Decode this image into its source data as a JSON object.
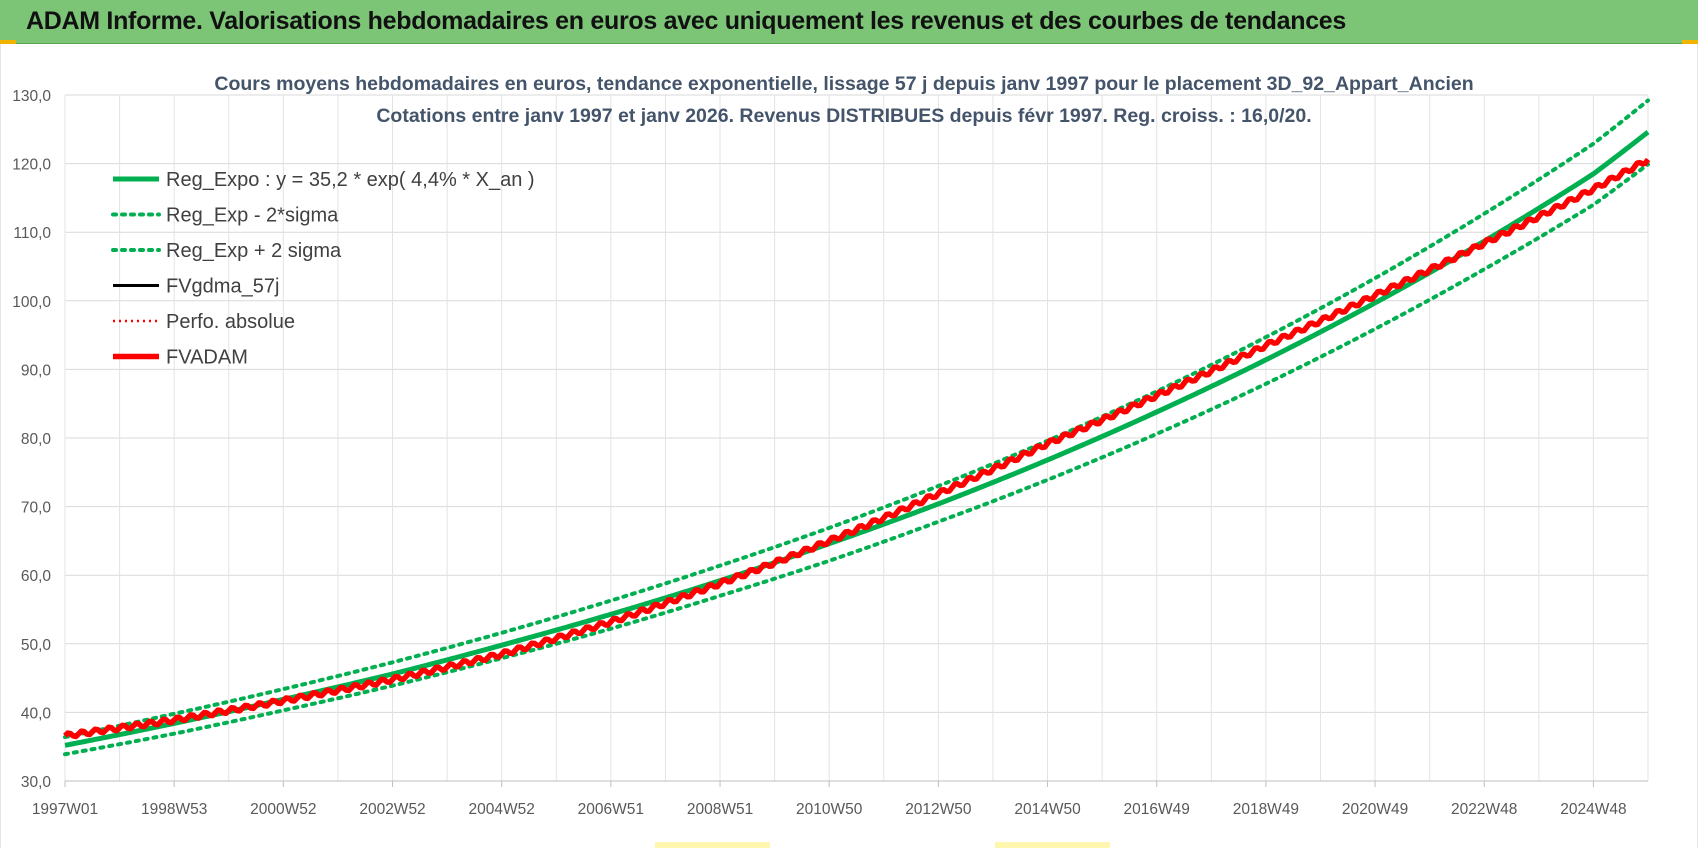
{
  "header": {
    "title": "ADAM Informe. Valorisations hebdomadaires en euros avec uniquement les revenus et des courbes de tendances"
  },
  "chart_data": {
    "type": "line",
    "title": "Cours moyens hebdomadaires en euros, tendance exponentielle, lissage 57 j depuis janv 1997  pour le placement 3D_92_Appart_Ancien",
    "subtitle": "Cotations entre janv 1997 et janv 2026. Revenus DISTRIBUES depuis févr 1997. Reg. croiss. : 16,0/20.",
    "xlabel": "",
    "ylabel": "",
    "ylim": [
      30,
      130
    ],
    "yticks": [
      "30,0",
      "40,0",
      "50,0",
      "60,0",
      "70,0",
      "80,0",
      "90,0",
      "100,0",
      "110,0",
      "120,0",
      "130,0"
    ],
    "xticks": [
      "1997W01",
      "1998W53",
      "2000W52",
      "2002W52",
      "2004W52",
      "2006W51",
      "2008W51",
      "2010W50",
      "2012W50",
      "2014W50",
      "2016W49",
      "2018W49",
      "2020W49",
      "2022W48",
      "2024W48"
    ],
    "x_years": [
      0,
      2,
      4,
      6,
      8,
      10,
      12,
      14,
      16,
      18,
      20,
      22,
      24,
      26,
      28
    ],
    "x_end_year": 29,
    "grid": true,
    "legend_position": "top-left",
    "series": [
      {
        "name": "Reg_Expo : y = 35,2 * exp( 4,4% *  X_an )",
        "color": "#00b050",
        "style": "solid",
        "x": [
          0,
          2,
          4,
          6,
          8,
          10,
          12,
          14,
          16,
          18,
          20,
          22,
          24,
          26,
          28,
          29
        ],
        "y": [
          35.2,
          38.4,
          41.9,
          45.6,
          49.8,
          54.3,
          59.2,
          64.6,
          70.4,
          76.8,
          83.8,
          91.4,
          99.7,
          108.7,
          118.5,
          124.6
        ]
      },
      {
        "name": "Reg_Exp - 2*sigma",
        "color": "#00b050",
        "style": "dotted",
        "x": [
          0,
          2,
          4,
          6,
          8,
          10,
          12,
          14,
          16,
          18,
          20,
          22,
          24,
          26,
          28,
          29
        ],
        "y": [
          33.9,
          36.9,
          40.3,
          43.9,
          47.9,
          52.2,
          57.0,
          62.1,
          67.8,
          73.9,
          80.6,
          87.9,
          95.9,
          104.6,
          114.0,
          119.9
        ]
      },
      {
        "name": "Reg_Exp + 2 sigma",
        "color": "#00b050",
        "style": "dotted",
        "x": [
          0,
          2,
          4,
          6,
          8,
          10,
          12,
          14,
          16,
          18,
          20,
          22,
          24,
          26,
          28,
          29
        ],
        "y": [
          36.4,
          39.8,
          43.4,
          47.3,
          51.6,
          56.3,
          61.4,
          66.9,
          73.0,
          79.6,
          86.8,
          94.7,
          103.3,
          112.7,
          122.9,
          129.2
        ]
      },
      {
        "name": "FVgdma_57j",
        "color": "#000000",
        "style": "solid",
        "x": [
          0,
          2,
          4,
          6,
          8,
          10,
          12,
          14,
          16,
          18,
          20,
          22,
          24,
          26,
          28,
          29
        ],
        "y": [
          36.6,
          38.9,
          41.7,
          44.8,
          48.5,
          53.2,
          58.8,
          65.0,
          71.9,
          79.2,
          86.2,
          93.5,
          100.8,
          108.4,
          116.3,
          120.6
        ]
      },
      {
        "name": "Perfo. absolue",
        "color": "#ff0000",
        "style": "dotted",
        "x": [
          0,
          2,
          4,
          6,
          8,
          10,
          12,
          14,
          16,
          18,
          20,
          22,
          24,
          26,
          28,
          29
        ],
        "y": [
          36.6,
          38.9,
          41.7,
          44.8,
          48.5,
          53.2,
          58.8,
          65.0,
          71.9,
          79.2,
          86.2,
          93.5,
          100.8,
          108.4,
          116.3,
          120.6
        ]
      },
      {
        "name": "FVADAM",
        "color": "#ff0000",
        "style": "solid",
        "x": [
          0,
          2,
          4,
          6,
          8,
          10,
          12,
          14,
          16,
          18,
          20,
          22,
          24,
          26,
          28,
          29
        ],
        "y": [
          36.6,
          38.9,
          41.7,
          44.8,
          48.5,
          53.2,
          58.8,
          65.0,
          71.9,
          79.2,
          86.2,
          93.5,
          100.8,
          108.4,
          116.3,
          120.6
        ]
      }
    ]
  }
}
